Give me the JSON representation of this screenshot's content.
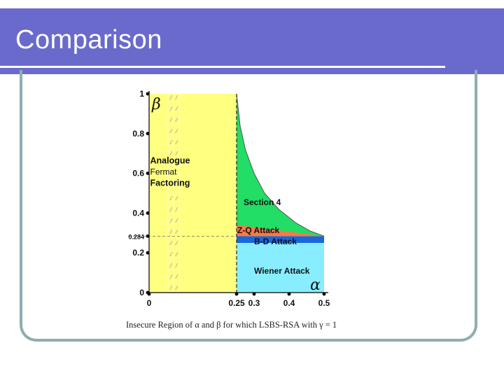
{
  "slide": {
    "title": "Comparison"
  },
  "chart_data": {
    "type": "area",
    "xlabel": "α",
    "ylabel": "β",
    "xlim": [
      0,
      0.5
    ],
    "ylim": [
      0,
      1
    ],
    "x_tick_labels": [
      {
        "value": 0,
        "label": "0"
      },
      {
        "value": 0.25,
        "label": "0.25"
      },
      {
        "value": 0.3,
        "label": "0.3"
      },
      {
        "value": 0.4,
        "label": "0.4"
      },
      {
        "value": 0.5,
        "label": "0.5"
      }
    ],
    "y_tick_labels": [
      {
        "value": 0,
        "label": "0"
      },
      {
        "value": 0.2,
        "label": "0.2"
      },
      {
        "value": 0.284,
        "label": "0.284"
      },
      {
        "value": 0.4,
        "label": "0.4"
      },
      {
        "value": 0.6,
        "label": "0.6"
      },
      {
        "value": 0.8,
        "label": "0.8"
      },
      {
        "value": 1,
        "label": "1"
      }
    ],
    "regions": [
      {
        "name": "Analogue Fermat Factoring",
        "label_lines": [
          "Analogue",
          "Fermat",
          "Factoring"
        ],
        "color": "#ffff80",
        "x_range": [
          0,
          0.25
        ],
        "y_range": [
          0,
          1
        ],
        "label_at": {
          "x": 0.003,
          "y": 0.65
        }
      },
      {
        "name": "Section 4",
        "label_lines": [
          "Section 4"
        ],
        "color": "#22dd66",
        "boundary": [
          {
            "x": 0.25,
            "y": 1.0
          },
          {
            "x": 0.26,
            "y": 0.84
          },
          {
            "x": 0.275,
            "y": 0.72
          },
          {
            "x": 0.3,
            "y": 0.6
          },
          {
            "x": 0.33,
            "y": 0.5
          },
          {
            "x": 0.37,
            "y": 0.42
          },
          {
            "x": 0.42,
            "y": 0.35
          },
          {
            "x": 0.46,
            "y": 0.31
          },
          {
            "x": 0.5,
            "y": 0.284
          }
        ],
        "label_at": {
          "x": 0.27,
          "y": 0.44
        }
      },
      {
        "name": "Z-Q Attack",
        "label_lines": [
          "Z-Q Attack"
        ],
        "color": "#ff7744",
        "points": [
          {
            "x": 0.25,
            "y": 0.284
          },
          {
            "x": 0.25,
            "y": 0.34
          },
          {
            "x": 0.5,
            "y": 0.284
          }
        ],
        "label_at": {
          "x": 0.252,
          "y": 0.3
        }
      },
      {
        "name": "B-D Attack",
        "label_lines": [
          "B-D Attack"
        ],
        "color": "#1a66dd",
        "y_range": [
          0.25,
          0.284
        ],
        "x_range": [
          0.25,
          0.5
        ],
        "label_at": {
          "x": 0.3,
          "y": 0.243
        }
      },
      {
        "name": "Wiener Attack",
        "label_lines": [
          "Wiener Attack"
        ],
        "color": "#88eeff",
        "x_range": [
          0.25,
          0.5
        ],
        "y_range": [
          0,
          0.25
        ],
        "label_at": {
          "x": 0.3,
          "y": 0.095
        }
      }
    ],
    "caption": "Insecure Region of α and β for which LSBS-RSA with γ = 1"
  }
}
